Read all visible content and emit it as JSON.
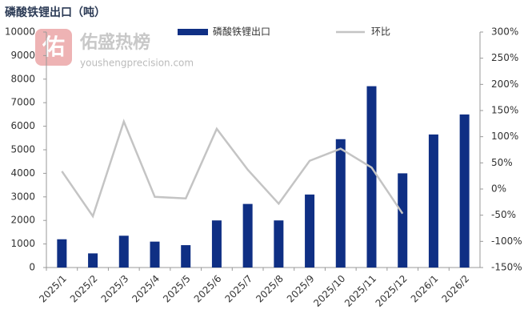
{
  "chart_data": {
    "type": "bar_line",
    "title": "磷酸铁锂出口（吨）",
    "categories": [
      "2025/1",
      "2025/2",
      "2025/3",
      "2025/4",
      "2025/5",
      "2025/6",
      "2025/7",
      "2025/8",
      "2025/9",
      "2025/10",
      "2025/11",
      "2025/12",
      "2026/1",
      "2026/2"
    ],
    "series": [
      {
        "name": "磷酸铁锂出口",
        "type": "bar",
        "color": "#0f2f84",
        "values": [
          1200,
          600,
          1350,
          1100,
          950,
          2000,
          2700,
          2000,
          3100,
          5450,
          7700,
          4000,
          5650,
          6500
        ]
      },
      {
        "name": "环比",
        "type": "line",
        "axis": "y2",
        "color": "#c4c4c4",
        "values": [
          34,
          -52,
          129,
          -15,
          -18,
          115,
          37,
          -28,
          54,
          77,
          41,
          -47,
          null,
          null
        ]
      }
    ],
    "ylim": [
      0,
      10000
    ],
    "yticks": [
      0,
      1000,
      2000,
      3000,
      4000,
      5000,
      6000,
      7000,
      8000,
      9000,
      10000
    ],
    "y2lim": [
      -150,
      300
    ],
    "y2ticks": [
      {
        "value": -150,
        "label": "-150%"
      },
      {
        "value": -100,
        "label": "-100%"
      },
      {
        "value": -50,
        "label": "-50%"
      },
      {
        "value": 0,
        "label": "0%"
      },
      {
        "value": 50,
        "label": "50%"
      },
      {
        "value": 100,
        "label": "100%"
      },
      {
        "value": 150,
        "label": "150%"
      },
      {
        "value": 200,
        "label": "200%"
      },
      {
        "value": 250,
        "label": "250%"
      },
      {
        "value": 300,
        "label": "300%"
      }
    ],
    "legend": "top",
    "grid": false,
    "annotations": [
      "佑",
      "佑盛热榜",
      "youshengprecision.com"
    ]
  }
}
